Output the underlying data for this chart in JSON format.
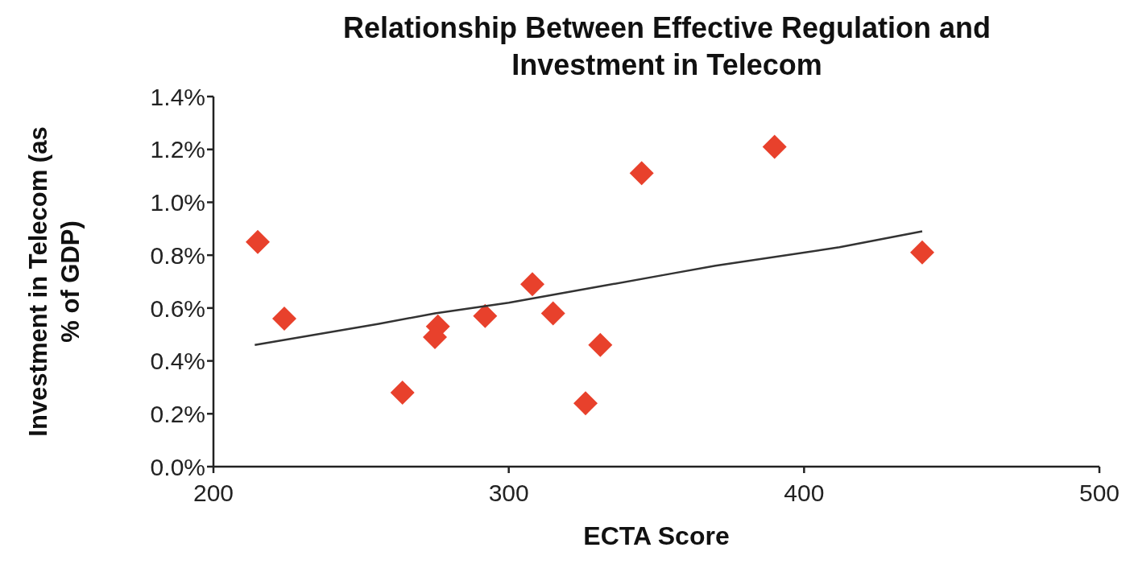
{
  "chart_data": {
    "type": "scatter",
    "title": "Relationship Between Effective Regulation and Investment in Telecom",
    "xlabel": "ECTA Score",
    "ylabel": "Investment in Telecom (as % of GDP)",
    "series": [
      {
        "color": "#e8412c",
        "marker": "diamond",
        "x": [
          215,
          224,
          264,
          276,
          275,
          292,
          308,
          315,
          326,
          331,
          345,
          390,
          440
        ],
        "values": [
          0.85,
          0.56,
          0.28,
          0.53,
          0.49,
          0.57,
          0.69,
          0.58,
          0.24,
          0.46,
          1.11,
          1.21,
          0.81
        ]
      },
      {
        "type": "line",
        "color": "#333333",
        "marker": "none",
        "x": [
          214,
          256,
          275,
          300,
          330,
          355,
          370,
          412,
          440
        ],
        "values": [
          0.46,
          0.54,
          0.58,
          0.62,
          0.68,
          0.73,
          0.76,
          0.83,
          0.89
        ]
      }
    ],
    "xlim": [
      200,
      500
    ],
    "xticks": [
      200,
      300,
      400,
      500
    ],
    "ylim": [
      0,
      1.4
    ],
    "yticks": [
      {
        "value": 0,
        "label": "0.0%"
      },
      {
        "value": 0.2,
        "label": "0.2%"
      },
      {
        "value": 0.4,
        "label": "0.4%"
      },
      {
        "value": 0.6,
        "label": "0.6%"
      },
      {
        "value": 0.8,
        "label": "0.8%"
      },
      {
        "value": 1.0,
        "label": "1.0%"
      },
      {
        "value": 1.2,
        "label": "1.2%"
      },
      {
        "value": 1.4,
        "label": "1.4%"
      }
    ],
    "grid": false
  }
}
